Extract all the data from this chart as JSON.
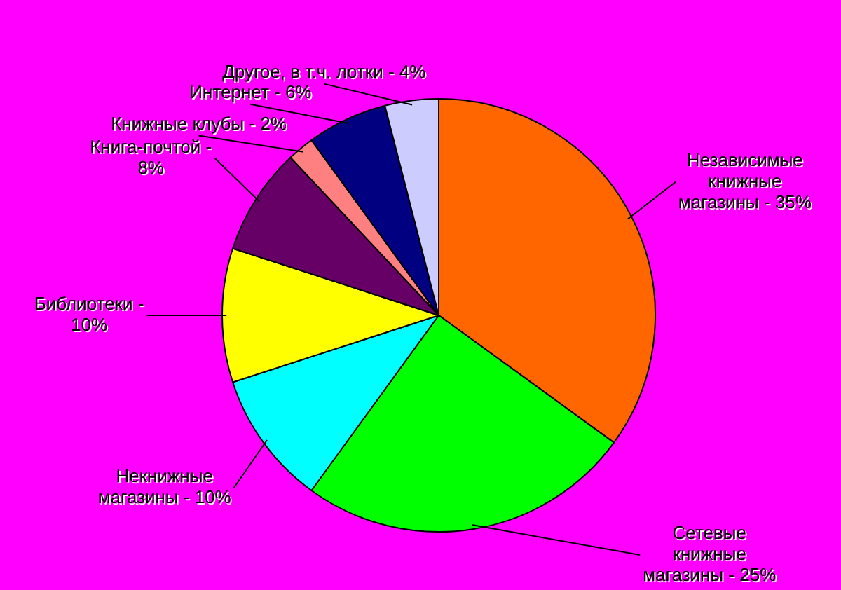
{
  "chart_data": {
    "type": "pie",
    "categories": [
      "Независимые книжные магазины - 35%",
      "Сетевые книжные магазины - 25%",
      "Некнижные магазины - 10%",
      "Библиотеки - 10%",
      "Книга-почтой - 8%",
      "Книжные клубы - 2%",
      "Интернет - 6%",
      "Другое, в т.ч. лотки - 4%"
    ],
    "values": [
      35,
      25,
      10,
      10,
      8,
      2,
      6,
      4
    ],
    "colors": [
      "#ff6600",
      "#00ff00",
      "#00ffff",
      "#ffff00",
      "#660066",
      "#ff8080",
      "#000080",
      "#ccccff"
    ],
    "legend": false
  }
}
